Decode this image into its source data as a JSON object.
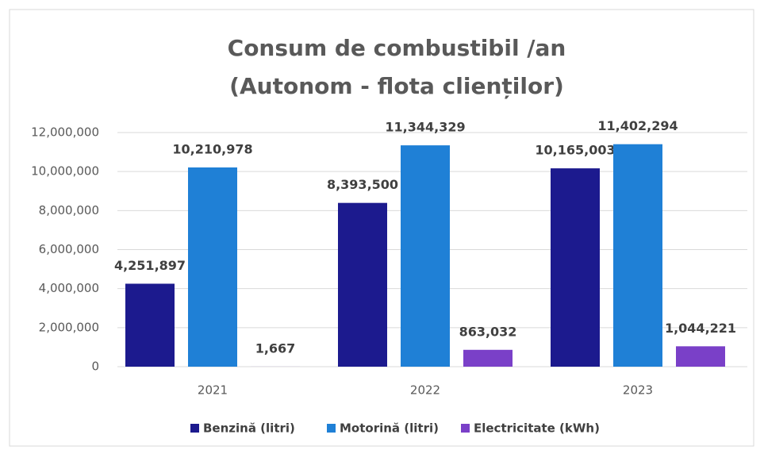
{
  "chart_data": {
    "type": "bar",
    "title": "Consum de combustibil /an",
    "subtitle": "(Autonom - flota clienților)",
    "categories": [
      "2021",
      "2022",
      "2023"
    ],
    "series": [
      {
        "name": "Benzină (litri)",
        "color": "#1c1a8e",
        "values": [
          4251897,
          8393500,
          10165003
        ],
        "value_labels": [
          "4,251,897",
          "8,393,500",
          "10,165,003"
        ]
      },
      {
        "name": "Motorină (litri)",
        "color": "#1f80d6",
        "values": [
          10210978,
          11344329,
          11402294
        ],
        "value_labels": [
          "10,210,978",
          "11,344,329",
          "11,402,294"
        ]
      },
      {
        "name": "Electricitate (kWh)",
        "color": "#7a40c8",
        "values": [
          1667,
          863032,
          1044221
        ],
        "value_labels": [
          "1,667",
          "863,032",
          "1,044,221"
        ]
      }
    ],
    "ylim": [
      0,
      12000000
    ],
    "yticks": [
      0,
      {
        "value": 2000000,
        "label": "2,000,000"
      },
      {
        "value": 4000000,
        "label": "4,000,000"
      },
      {
        "value": 6000000,
        "label": "6,000,000"
      },
      {
        "value": 8000000,
        "label": "8,000,000"
      },
      {
        "value": 10000000,
        "label": "10,000,000"
      },
      {
        "value": 12000000,
        "label": "12,000,000"
      }
    ],
    "grid": true,
    "legend": "bottom"
  }
}
